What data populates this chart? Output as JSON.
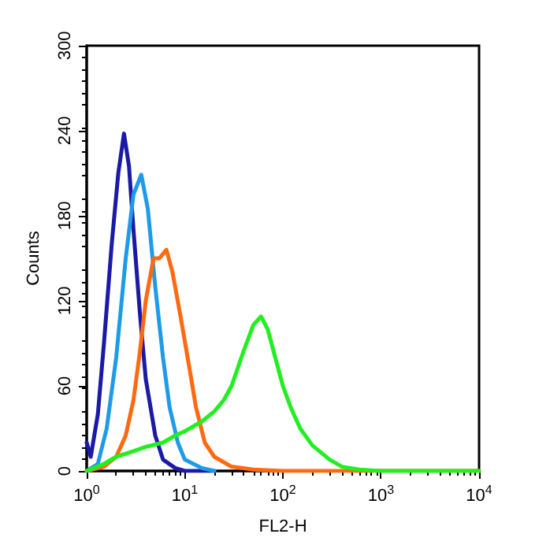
{
  "chart_data": {
    "type": "line",
    "xlabel": "FL2-H",
    "ylabel": "Counts",
    "log": "x",
    "grid": false,
    "marker": "none",
    "line_style": "solid",
    "xlim": [
      1,
      10000
    ],
    "ylim": [
      0,
      300
    ],
    "xticks": [
      {
        "value": 1,
        "label": "10$^{0}$"
      },
      {
        "value": 10,
        "label": "10$^{1}$"
      },
      {
        "value": 100,
        "label": "10$^{2}$"
      },
      {
        "value": 1000,
        "label": "10$^{3}$"
      },
      {
        "value": 10000,
        "label": "10$^{4}$"
      }
    ],
    "yticks": [
      0,
      60,
      120,
      180,
      240,
      300
    ],
    "series": [
      {
        "color": "#1a1aa6",
        "x": [
          1,
          1.1,
          1.3,
          1.5,
          1.8,
          2.1,
          2.4,
          2.7,
          3,
          3.5,
          4,
          5,
          6,
          8,
          10,
          20
        ],
        "values": [
          20,
          10,
          40,
          90,
          160,
          210,
          238,
          215,
          170,
          110,
          65,
          25,
          8,
          2,
          0,
          0
        ]
      },
      {
        "color": "#1e9be8",
        "x": [
          1,
          1.3,
          1.6,
          2,
          2.5,
          3,
          3.6,
          4.2,
          5,
          6,
          7,
          8.5,
          10,
          15,
          20
        ],
        "values": [
          0,
          5,
          30,
          80,
          150,
          195,
          209,
          185,
          130,
          80,
          45,
          20,
          8,
          2,
          0
        ]
      },
      {
        "color": "#ff6a10",
        "x": [
          1,
          1.5,
          2,
          2.5,
          3,
          3.5,
          4,
          4.8,
          5.5,
          6.5,
          7.5,
          9,
          11,
          13,
          16,
          20,
          30,
          50,
          100,
          10000
        ],
        "values": [
          0,
          3,
          10,
          25,
          50,
          85,
          120,
          150,
          150,
          156,
          140,
          110,
          75,
          45,
          20,
          10,
          3,
          1,
          0,
          0
        ]
      },
      {
        "color": "#22ee22",
        "x": [
          1,
          1.5,
          2,
          3,
          4,
          6,
          8,
          10,
          15,
          20,
          25,
          30,
          40,
          50,
          60,
          70,
          80,
          100,
          120,
          150,
          200,
          300,
          400,
          600,
          1000,
          10000
        ],
        "values": [
          0,
          5,
          10,
          14,
          17,
          20,
          25,
          28,
          35,
          42,
          50,
          60,
          85,
          103,
          109,
          100,
          85,
          60,
          45,
          30,
          18,
          8,
          3,
          1,
          0,
          0
        ]
      }
    ]
  }
}
